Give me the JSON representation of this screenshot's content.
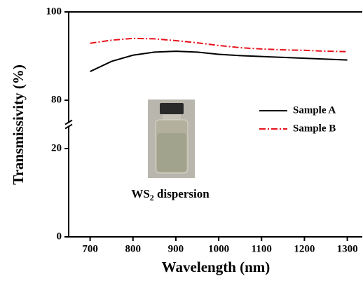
{
  "chart_data": {
    "type": "line",
    "x_label": "Wavelength (nm)",
    "y_label": "Transmissivity (%)",
    "x": [
      700,
      750,
      800,
      850,
      900,
      950,
      1000,
      1050,
      1100,
      1150,
      1200,
      1250,
      1300
    ],
    "series": [
      {
        "name": "Sample A",
        "color": "#000000",
        "dash": "solid",
        "values": [
          86.5,
          88.8,
          90.2,
          90.9,
          91.1,
          90.9,
          90.4,
          90.1,
          89.9,
          89.7,
          89.5,
          89.3,
          89.1
        ]
      },
      {
        "name": "Sample B",
        "color": "#e8101a",
        "dash": "dashdot",
        "values": [
          92.9,
          93.6,
          94.0,
          93.9,
          93.5,
          93.0,
          92.4,
          91.9,
          91.6,
          91.4,
          91.3,
          91.1,
          91.0
        ]
      }
    ],
    "xlim": [
      650,
      1335
    ],
    "xticks": [
      700,
      800,
      900,
      1000,
      1100,
      1200,
      1300
    ],
    "ylim": [
      0,
      100
    ],
    "y_break": [
      25,
      75
    ],
    "yticks": [
      0,
      20,
      80,
      100
    ],
    "annotation": {
      "text": "WS",
      "subscript": "2",
      "suffix": " dispersion"
    }
  }
}
